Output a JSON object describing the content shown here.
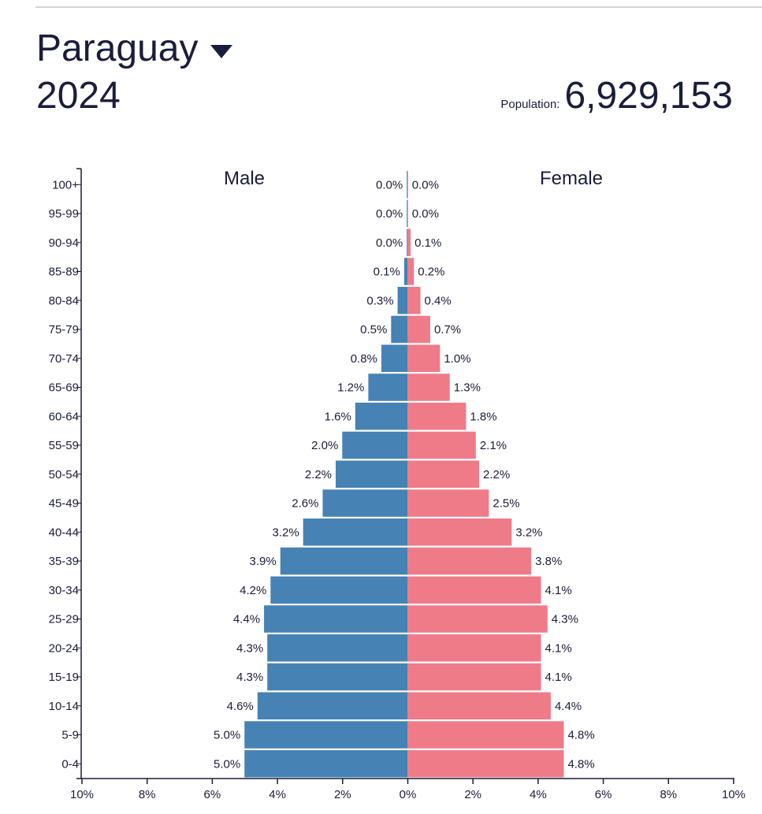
{
  "header": {
    "country": "Paraguay",
    "year": "2024",
    "population_label": "Population:",
    "population_value": "6,929,153"
  },
  "colors": {
    "male": "#4682b4",
    "female": "#ef7b89",
    "text": "#1a1d3a"
  },
  "chart_data": {
    "type": "bar",
    "orientation": "horizontal-pyramid",
    "categories": [
      "100+",
      "95-99",
      "90-94",
      "85-89",
      "80-84",
      "75-79",
      "70-74",
      "65-69",
      "60-64",
      "55-59",
      "50-54",
      "45-49",
      "40-44",
      "35-39",
      "30-34",
      "25-29",
      "20-24",
      "15-19",
      "10-14",
      "5-9",
      "0-4"
    ],
    "series": [
      {
        "name": "Male",
        "values": [
          0.0,
          0.0,
          0.0,
          0.1,
          0.3,
          0.5,
          0.8,
          1.2,
          1.6,
          2.0,
          2.2,
          2.6,
          3.2,
          3.9,
          4.2,
          4.4,
          4.3,
          4.3,
          4.6,
          5.0,
          5.0
        ]
      },
      {
        "name": "Female",
        "values": [
          0.0,
          0.0,
          0.1,
          0.2,
          0.4,
          0.7,
          1.0,
          1.3,
          1.8,
          2.1,
          2.2,
          2.5,
          3.2,
          3.8,
          4.1,
          4.3,
          4.1,
          4.1,
          4.4,
          4.8,
          4.8
        ]
      }
    ],
    "x_ticks": [
      "10%",
      "8%",
      "6%",
      "4%",
      "2%",
      "0%",
      "2%",
      "4%",
      "6%",
      "8%",
      "10%"
    ],
    "xlim": [
      -10,
      10
    ],
    "unit": "%"
  }
}
